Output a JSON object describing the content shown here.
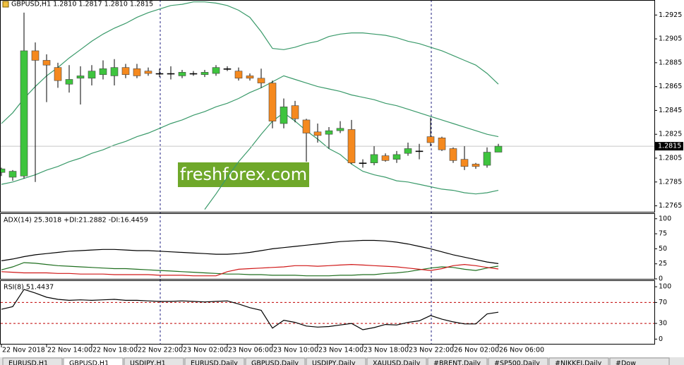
{
  "chart_data": [
    {
      "type": "candlestick",
      "title": "GBPUSD,H1  1.2810 1.2817 1.2810 1.2815",
      "watermark": "freshforex.com",
      "categories": [
        "22 Nov 2018",
        null,
        null,
        null,
        "22 Nov 14:00",
        null,
        null,
        null,
        "22 Nov 18:00",
        null,
        null,
        null,
        "22 Nov 22:00",
        null,
        null,
        null,
        "23 Nov 02:00",
        null,
        null,
        null,
        "23 Nov 06:00",
        null,
        null,
        null,
        "23 Nov 10:00",
        null,
        null,
        null,
        "23 Nov 14:00",
        null,
        null,
        null,
        "23 Nov 18:00",
        null,
        null,
        null,
        "23 Nov 22:00",
        null,
        null,
        null,
        "26 Nov 02:00",
        null,
        null,
        null,
        "26 Nov 06:00"
      ],
      "open": [
        1.2793,
        1.2789,
        1.279,
        1.2895,
        1.2887,
        1.2881,
        1.2867,
        1.2872,
        1.2872,
        1.2875,
        1.2874,
        1.2881,
        1.288,
        1.2878,
        1.2876,
        1.2876,
        1.2874,
        1.2876,
        1.2875,
        1.2876,
        1.288,
        1.2878,
        1.2874,
        1.2872,
        1.2868,
        1.2834,
        1.2849,
        1.2837,
        1.2827,
        1.2825,
        1.2828,
        1.2829,
        1.2801,
        1.2801,
        1.2807,
        1.2804,
        1.2809,
        1.2811,
        1.2823,
        1.2822,
        1.2813,
        1.2804,
        1.28,
        1.2799,
        1.281
      ],
      "high": [
        1.2797,
        1.2795,
        1.2927,
        1.2902,
        1.2892,
        1.2885,
        1.2883,
        1.2882,
        1.2883,
        1.2887,
        1.2888,
        1.2884,
        1.2884,
        1.2881,
        1.288,
        1.2882,
        1.2879,
        1.2878,
        1.2879,
        1.2883,
        1.2882,
        1.2881,
        1.2876,
        1.288,
        1.287,
        1.2855,
        1.2853,
        1.2838,
        1.2834,
        1.2831,
        1.2836,
        1.2837,
        1.2804,
        1.2815,
        1.2809,
        1.2811,
        1.2818,
        1.2817,
        1.2839,
        1.2823,
        1.2814,
        1.2815,
        1.2801,
        1.2814,
        1.2817
      ],
      "low": [
        1.279,
        1.2786,
        1.2788,
        1.2785,
        1.2852,
        1.2864,
        1.286,
        1.285,
        1.2866,
        1.2871,
        1.2866,
        1.2872,
        1.2872,
        1.2874,
        1.2873,
        1.2871,
        1.2872,
        1.2874,
        1.2873,
        1.2874,
        1.2878,
        1.287,
        1.287,
        1.2864,
        1.283,
        1.283,
        1.2835,
        1.2802,
        1.2818,
        1.2813,
        1.2826,
        1.28,
        1.2797,
        1.2799,
        1.2802,
        1.2801,
        1.2807,
        1.2804,
        1.2815,
        1.2811,
        1.2801,
        1.2795,
        1.2796,
        1.2797,
        1.281
      ],
      "close": [
        1.2796,
        1.2794,
        1.2895,
        1.2887,
        1.2883,
        1.287,
        1.2871,
        1.2874,
        1.2878,
        1.288,
        1.2881,
        1.2875,
        1.2874,
        1.2876,
        1.2876,
        1.2876,
        1.2877,
        1.2876,
        1.2877,
        1.2881,
        1.288,
        1.2872,
        1.2872,
        1.2868,
        1.2836,
        1.2848,
        1.2838,
        1.2826,
        1.2824,
        1.2828,
        1.283,
        1.2801,
        1.2801,
        1.2808,
        1.2803,
        1.2808,
        1.2813,
        1.2811,
        1.2818,
        1.2812,
        1.2803,
        1.2798,
        1.2798,
        1.281,
        1.2815
      ],
      "up_color": "#3ec43e",
      "down_color": "#f5891e",
      "line_color": "#000000",
      "series": [
        {
          "color": "#3a9a6a",
          "values": [
            1.2834,
            1.2843,
            1.2855,
            1.2865,
            1.2874,
            1.2881,
            1.2889,
            1.2896,
            1.2903,
            1.2909,
            1.2914,
            1.2918,
            1.2923,
            1.2927,
            1.293,
            1.2933,
            1.2934,
            1.2936,
            1.2936,
            1.2935,
            1.2933,
            1.2929,
            1.2923,
            1.2911,
            1.2897,
            1.2896,
            1.2898,
            1.2901,
            1.2903,
            1.2907,
            1.2909,
            1.291,
            1.291,
            1.2909,
            1.2908,
            1.2906,
            1.2903,
            1.2901,
            1.2898,
            1.2895,
            1.2891,
            1.2887,
            1.2883,
            1.2876,
            1.2867
          ]
        },
        {
          "color": "#3a9a6a",
          "values": [
            1.2783,
            1.2785,
            1.2788,
            1.2791,
            1.2795,
            1.2798,
            1.2802,
            1.2805,
            1.2809,
            1.2812,
            1.2816,
            1.2819,
            1.2823,
            1.2826,
            1.283,
            1.2834,
            1.2837,
            1.2841,
            1.2844,
            1.2848,
            1.2851,
            1.2855,
            1.286,
            1.2864,
            1.2869,
            1.2874,
            1.2871,
            1.2868,
            1.2865,
            1.2863,
            1.2861,
            1.2858,
            1.2856,
            1.2854,
            1.2851,
            1.2849,
            1.2846,
            1.2843,
            1.284,
            1.2837,
            1.2834,
            1.2831,
            1.2828,
            1.2825,
            1.2823
          ]
        },
        {
          "color": "#3a9a6a",
          "values": [
            null,
            null,
            null,
            null,
            null,
            null,
            null,
            null,
            null,
            null,
            null,
            null,
            null,
            null,
            null,
            null,
            null,
            null,
            1.2762,
            1.2775,
            1.2789,
            1.2802,
            1.2813,
            1.2825,
            1.2836,
            1.2843,
            1.2836,
            1.2828,
            1.2821,
            1.2813,
            1.2808,
            1.28,
            1.2794,
            1.2791,
            1.2789,
            1.2786,
            1.2785,
            1.2783,
            1.2781,
            1.2779,
            1.2778,
            1.2776,
            1.2775,
            1.2776,
            1.2778
          ]
        }
      ],
      "current_price": 1.2815,
      "ylim": [
        1.276,
        1.2937
      ],
      "yticks": [
        1.2925,
        1.2905,
        1.2885,
        1.2865,
        1.2845,
        1.2825,
        1.2805,
        1.2785,
        1.2765
      ]
    },
    {
      "type": "line",
      "title": "ADX(14) 25.3018 +DI:21.2882 -DI:16.4459",
      "series": [
        {
          "color": "#000000",
          "values": [
            30,
            33,
            37,
            40,
            42,
            44,
            46,
            47,
            48,
            49,
            49,
            48,
            47,
            47,
            46,
            45,
            44,
            43,
            42,
            41,
            41,
            42,
            44,
            47,
            50,
            52,
            54,
            56,
            58,
            60,
            62,
            63,
            64,
            64,
            63,
            61,
            58,
            54,
            50,
            45,
            40,
            36,
            32,
            28,
            25.3
          ]
        },
        {
          "color": "#1e6e1e",
          "values": [
            15,
            20,
            27,
            26,
            24,
            22,
            21,
            20,
            19,
            18,
            17,
            17,
            16,
            15,
            14,
            13,
            12,
            11,
            10,
            9,
            8,
            8,
            7,
            7,
            6,
            6,
            6,
            5,
            5,
            5,
            6,
            6,
            7,
            7,
            9,
            10,
            12,
            15,
            18,
            20,
            19,
            16,
            14,
            18,
            21.3
          ]
        },
        {
          "color": "#d01818",
          "values": [
            12,
            11,
            10,
            10,
            10,
            9,
            9,
            8,
            8,
            8,
            7,
            7,
            7,
            7,
            6,
            6,
            6,
            5,
            5,
            5,
            12,
            16,
            17,
            18,
            19,
            20,
            22,
            22,
            21,
            22,
            23,
            24,
            23,
            22,
            21,
            20,
            18,
            16,
            14,
            17,
            22,
            24,
            22,
            19,
            16.4
          ]
        }
      ],
      "ylim": [
        0,
        108
      ],
      "yticks": [
        100,
        75,
        50,
        25,
        0
      ]
    },
    {
      "type": "line",
      "title": "RSI(8) 51.4437",
      "series": [
        {
          "color": "#000000",
          "values": [
            57,
            62,
            95,
            88,
            80,
            76,
            74,
            75,
            74,
            75,
            76,
            74,
            74,
            73,
            72,
            72,
            73,
            72,
            71,
            72,
            73,
            67,
            60,
            55,
            21,
            36,
            32,
            25,
            23,
            24,
            27,
            30,
            18,
            22,
            28,
            27,
            32,
            35,
            45,
            38,
            33,
            29,
            29,
            48,
            51.4
          ]
        }
      ],
      "levels": [
        70,
        30
      ],
      "level_color": "#c00000",
      "ylim": [
        -9,
        111
      ],
      "yticks": [
        100,
        70,
        30,
        0
      ]
    }
  ],
  "tabs": [
    "EURUSD,H1",
    "GBPUSD,H1",
    "USDJPY,H1",
    "EURUSD,Daily",
    "GBPUSD,Daily",
    "USDJPY,Daily",
    "XAUUSD,Daily",
    "#BRENT,Daily",
    "#SP500,Daily",
    "#NIKKEI,Daily",
    "#Dow"
  ]
}
